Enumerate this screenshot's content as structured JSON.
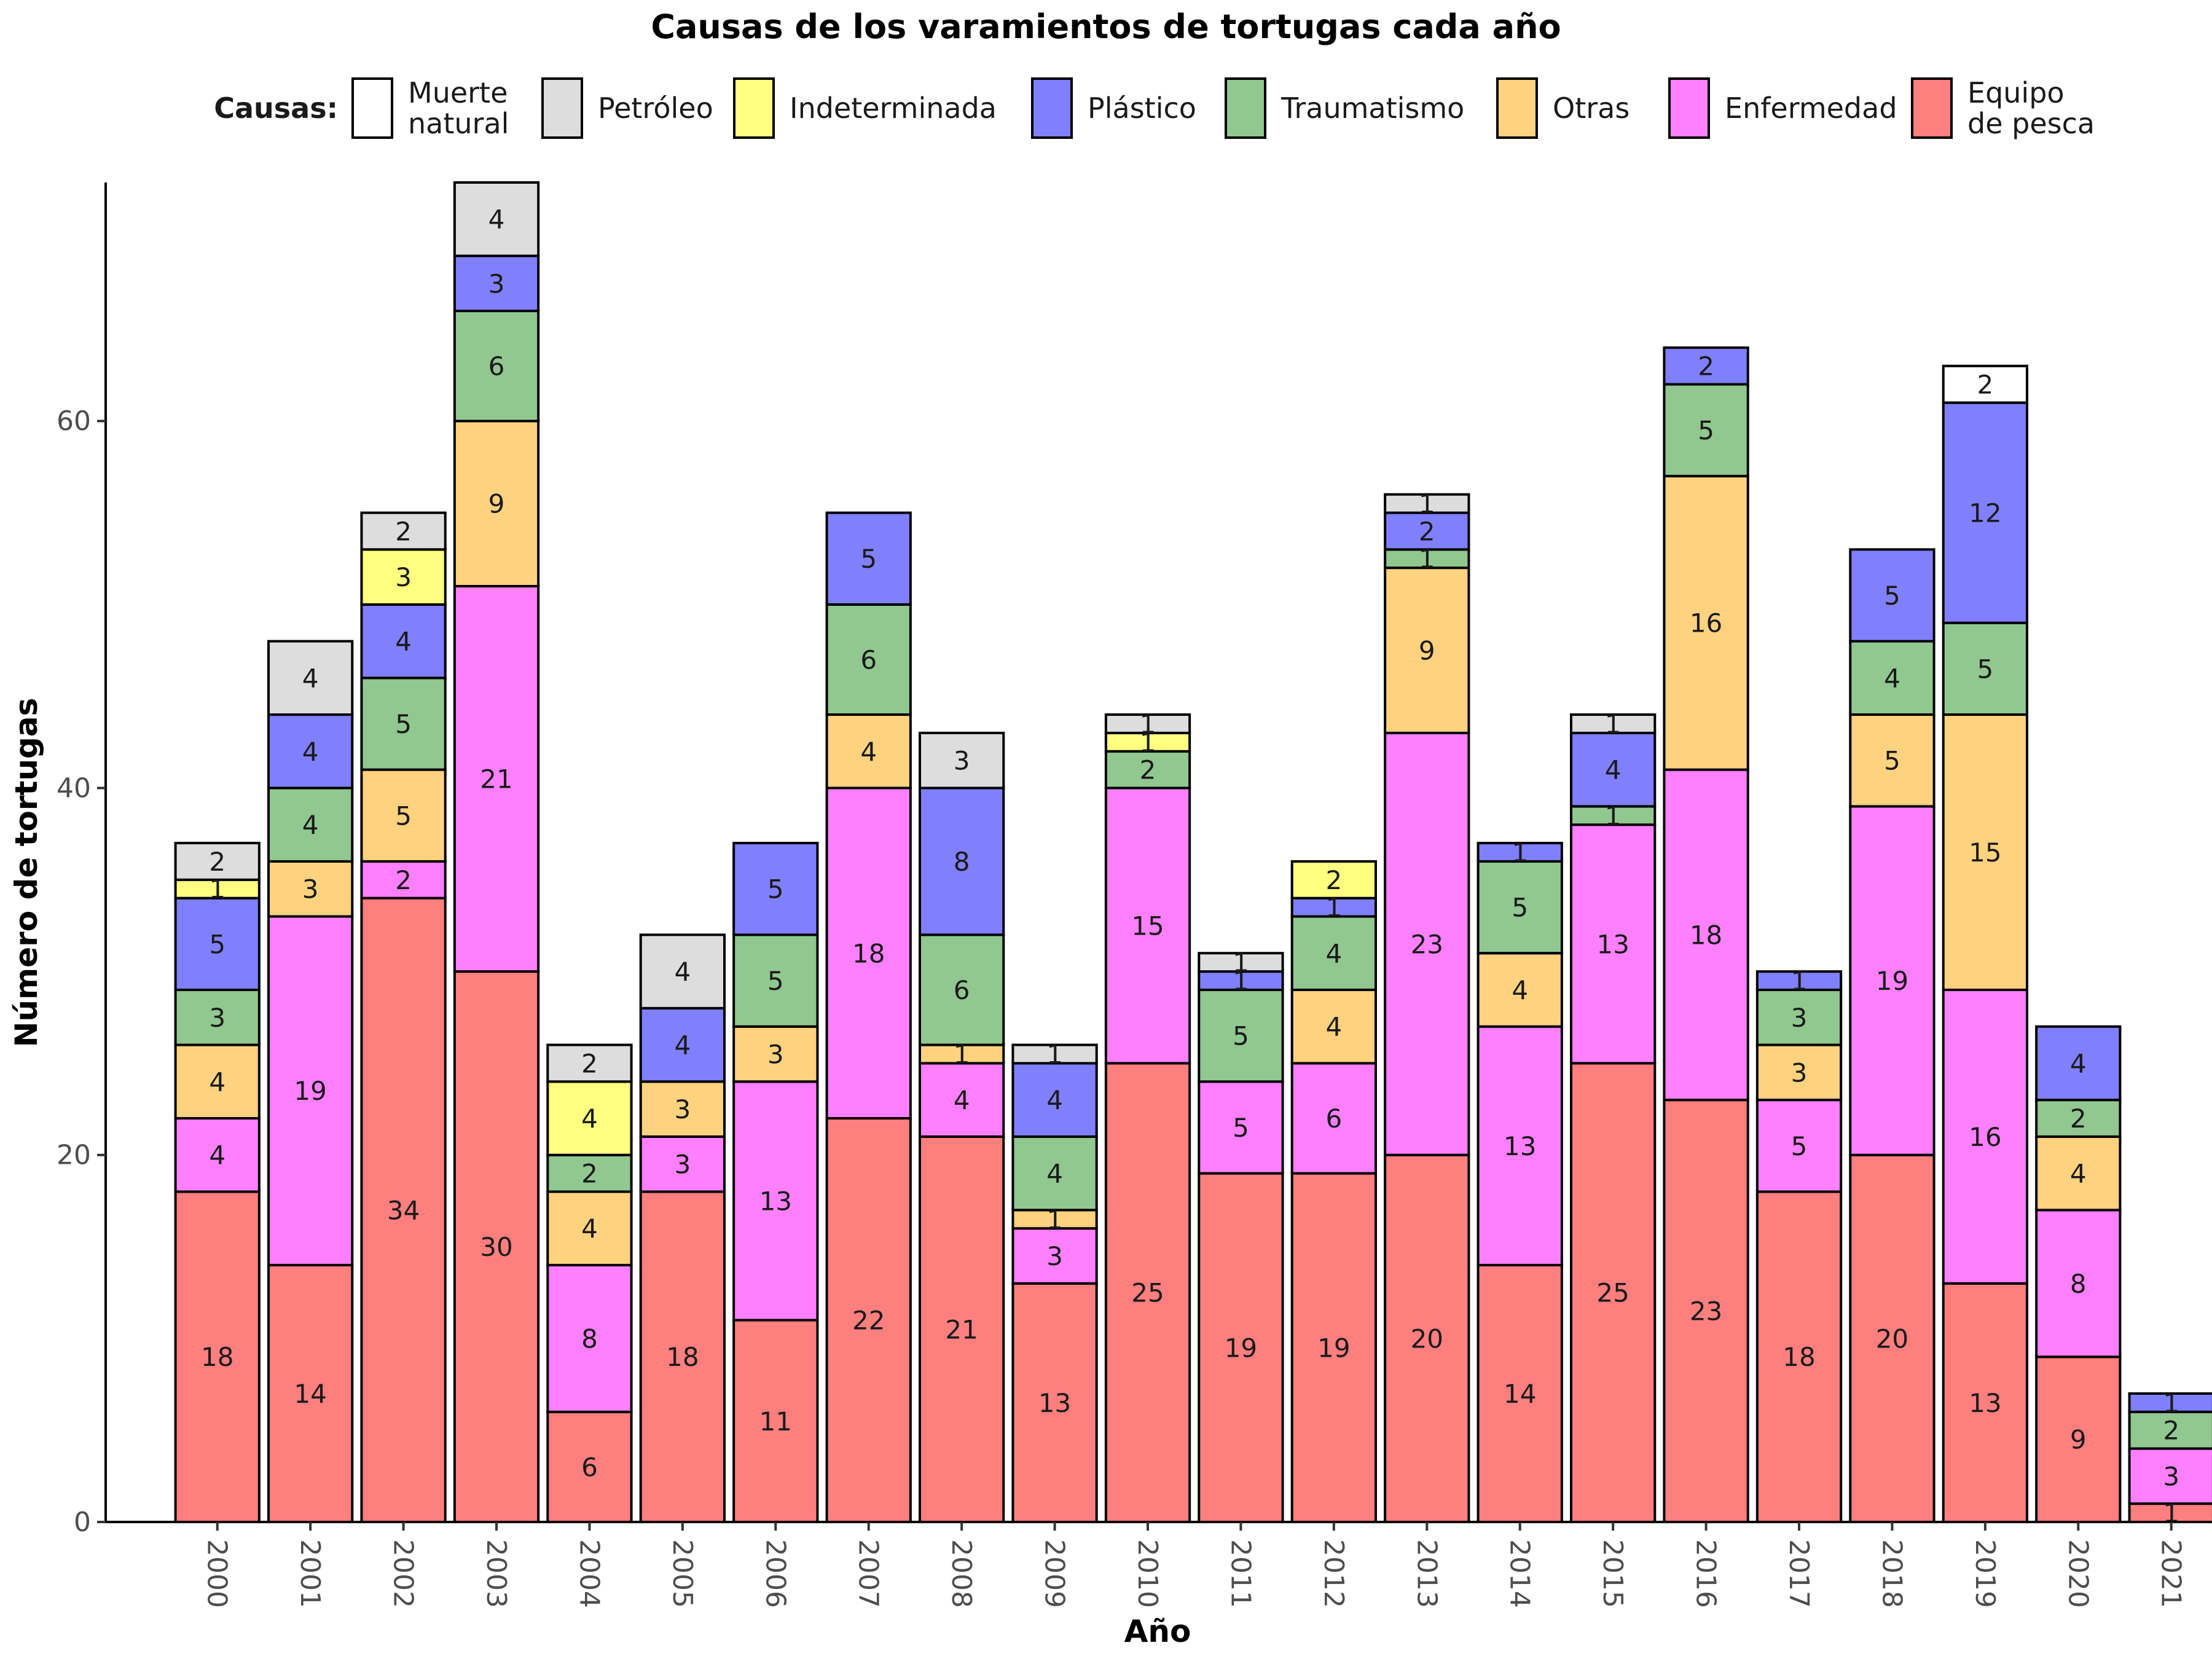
{
  "chart_data": {
    "type": "bar",
    "stacked": true,
    "title": "Causas de los varamientos de tortugas cada año",
    "xlabel": "Año",
    "ylabel": "Número de tortugas",
    "ylim": [
      0,
      73
    ],
    "yticks": [
      0,
      20,
      40,
      60
    ],
    "grid": false,
    "legend_position": "top",
    "legend_title": "Causas:",
    "categories": [
      "2000",
      "2001",
      "2002",
      "2003",
      "2004",
      "2005",
      "2006",
      "2007",
      "2008",
      "2009",
      "2010",
      "2011",
      "2012",
      "2013",
      "2014",
      "2015",
      "2016",
      "2017",
      "2018",
      "2019",
      "2020",
      "2021"
    ],
    "series": [
      {
        "name": "Equipo\nde pesca",
        "color": "#FF7F7F",
        "values": [
          18,
          14,
          34,
          30,
          6,
          18,
          11,
          22,
          21,
          13,
          25,
          19,
          19,
          20,
          14,
          25,
          23,
          18,
          20,
          13,
          9,
          1
        ]
      },
      {
        "name": "Enfermedad",
        "color": "#FF80FF",
        "values": [
          4,
          19,
          2,
          21,
          8,
          3,
          13,
          18,
          4,
          3,
          15,
          5,
          6,
          23,
          13,
          13,
          18,
          5,
          19,
          16,
          8,
          3
        ]
      },
      {
        "name": "Otras",
        "color": "#FFD280",
        "values": [
          4,
          3,
          5,
          9,
          4,
          3,
          3,
          4,
          1,
          1,
          0,
          0,
          4,
          9,
          4,
          0,
          16,
          3,
          5,
          15,
          4,
          0
        ]
      },
      {
        "name": "Traumatismo",
        "color": "#90C890",
        "values": [
          3,
          4,
          5,
          6,
          2,
          0,
          5,
          6,
          6,
          4,
          2,
          5,
          4,
          1,
          5,
          1,
          5,
          3,
          4,
          5,
          2,
          2
        ]
      },
      {
        "name": "Plástico",
        "color": "#8080FF",
        "values": [
          5,
          4,
          4,
          3,
          0,
          4,
          5,
          5,
          8,
          4,
          0,
          1,
          1,
          2,
          1,
          4,
          2,
          1,
          5,
          12,
          4,
          1
        ]
      },
      {
        "name": "Indeterminada",
        "color": "#FFFF80",
        "values": [
          1,
          0,
          3,
          0,
          4,
          0,
          0,
          0,
          0,
          0,
          1,
          0,
          2,
          0,
          0,
          0,
          0,
          0,
          0,
          0,
          0,
          0
        ]
      },
      {
        "name": "Petróleo",
        "color": "#DDDDDD",
        "values": [
          2,
          4,
          2,
          4,
          2,
          4,
          0,
          0,
          3,
          1,
          1,
          1,
          0,
          1,
          0,
          1,
          0,
          0,
          0,
          0,
          0,
          0
        ]
      },
      {
        "name": "Muerte\nnatural",
        "color": "#FFFFFF",
        "values": [
          0,
          0,
          0,
          0,
          0,
          0,
          0,
          0,
          0,
          0,
          0,
          0,
          0,
          0,
          0,
          0,
          0,
          0,
          0,
          2,
          0,
          0
        ]
      }
    ],
    "legend_order": [
      "Muerte\nnatural",
      "Petróleo",
      "Indeterminada",
      "Plástico",
      "Traumatismo",
      "Otras",
      "Enfermedad",
      "Equipo\nde pesca"
    ]
  }
}
